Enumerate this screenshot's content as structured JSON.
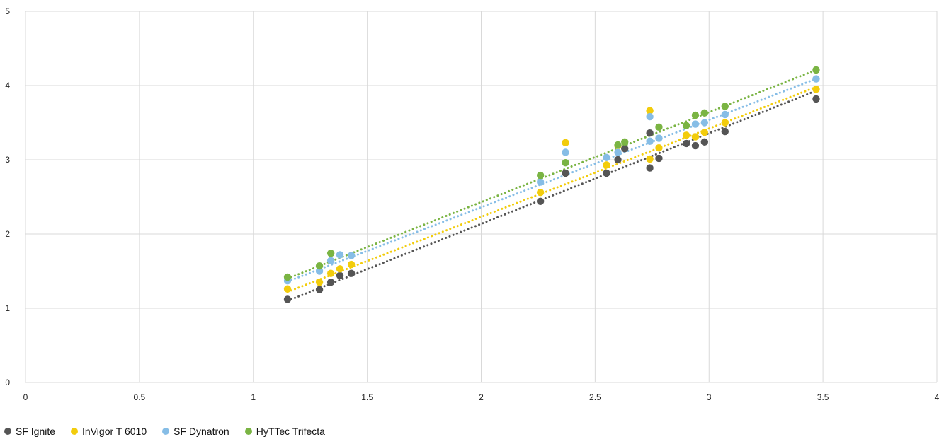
{
  "chart_data": {
    "type": "scatter",
    "title": "",
    "xlabel": "",
    "ylabel": "",
    "xlim": [
      0,
      4
    ],
    "ylim": [
      0,
      5
    ],
    "x_ticks": [
      "0",
      "0.5",
      "1",
      "1.5",
      "2",
      "2.5",
      "3",
      "3.5",
      "4"
    ],
    "y_ticks": [
      "0",
      "1",
      "2",
      "3",
      "4",
      "5"
    ],
    "grid": true,
    "legend_position": "bottom-left",
    "trendline": "linear, dotted",
    "series": [
      {
        "name": "SF Ignite",
        "color": "#555555",
        "points": [
          [
            1.15,
            1.12
          ],
          [
            1.29,
            1.25
          ],
          [
            1.34,
            1.35
          ],
          [
            1.38,
            1.44
          ],
          [
            1.43,
            1.47
          ],
          [
            2.26,
            2.44
          ],
          [
            2.37,
            2.82
          ],
          [
            2.55,
            2.82
          ],
          [
            2.6,
            3.0
          ],
          [
            2.63,
            3.15
          ],
          [
            2.74,
            2.89
          ],
          [
            2.74,
            3.36
          ],
          [
            2.78,
            3.02
          ],
          [
            2.9,
            3.22
          ],
          [
            2.94,
            3.19
          ],
          [
            2.98,
            3.24
          ],
          [
            3.07,
            3.38
          ],
          [
            3.47,
            3.82
          ]
        ],
        "trend": [
          [
            1.15,
            1.1
          ],
          [
            3.47,
            3.93
          ]
        ]
      },
      {
        "name": "InVigor T 6010",
        "color": "#f2cc0c",
        "points": [
          [
            1.15,
            1.26
          ],
          [
            1.29,
            1.35
          ],
          [
            1.34,
            1.47
          ],
          [
            1.38,
            1.53
          ],
          [
            1.43,
            1.59
          ],
          [
            2.26,
            2.56
          ],
          [
            2.37,
            3.23
          ],
          [
            2.55,
            2.93
          ],
          [
            2.6,
            3.19
          ],
          [
            2.74,
            3.01
          ],
          [
            2.74,
            3.66
          ],
          [
            2.78,
            3.16
          ],
          [
            2.9,
            3.33
          ],
          [
            2.94,
            3.31
          ],
          [
            2.98,
            3.37
          ],
          [
            3.07,
            3.5
          ],
          [
            3.47,
            3.95
          ]
        ],
        "trend": [
          [
            1.15,
            1.22
          ],
          [
            3.47,
            3.98
          ]
        ]
      },
      {
        "name": "SF Dynatron",
        "color": "#86bde6",
        "points": [
          [
            1.15,
            1.37
          ],
          [
            1.29,
            1.5
          ],
          [
            1.34,
            1.64
          ],
          [
            1.38,
            1.72
          ],
          [
            1.43,
            1.71
          ],
          [
            2.26,
            2.7
          ],
          [
            2.37,
            3.1
          ],
          [
            2.55,
            3.03
          ],
          [
            2.6,
            3.1
          ],
          [
            2.74,
            3.25
          ],
          [
            2.74,
            3.58
          ],
          [
            2.78,
            3.29
          ],
          [
            2.94,
            3.48
          ],
          [
            2.98,
            3.5
          ],
          [
            3.07,
            3.61
          ],
          [
            3.47,
            4.09
          ]
        ],
        "trend": [
          [
            1.15,
            1.36
          ],
          [
            3.47,
            4.09
          ]
        ]
      },
      {
        "name": "HyTTec Trifecta",
        "color": "#7ab443",
        "points": [
          [
            1.15,
            1.42
          ],
          [
            1.29,
            1.57
          ],
          [
            1.34,
            1.74
          ],
          [
            2.26,
            2.79
          ],
          [
            2.37,
            2.96
          ],
          [
            2.6,
            3.2
          ],
          [
            2.63,
            3.24
          ],
          [
            2.78,
            3.44
          ],
          [
            2.9,
            3.46
          ],
          [
            2.94,
            3.6
          ],
          [
            2.98,
            3.63
          ],
          [
            3.07,
            3.72
          ],
          [
            3.47,
            4.21
          ]
        ],
        "trend": [
          [
            1.15,
            1.4
          ],
          [
            3.47,
            4.21
          ]
        ]
      }
    ]
  }
}
